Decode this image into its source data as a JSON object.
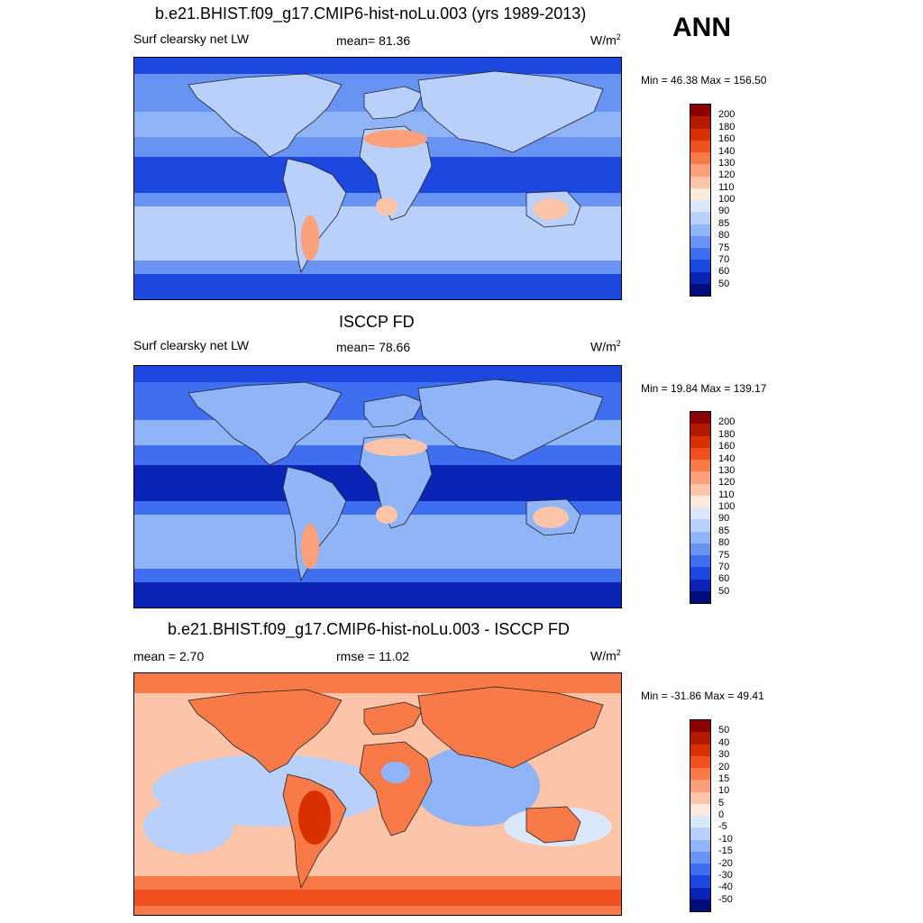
{
  "header": {
    "season": "ANN"
  },
  "units": "W/m",
  "units_sup": "2",
  "panels": [
    {
      "title": "b.e21.BHIST.f09_g17.CMIP6-hist-noLu.003 (yrs 1989-2013)",
      "left_label": "Surf clearsky net LW",
      "stat_label": "mean=  81.36",
      "min_max": "Min =  46.38 Max = 156.50",
      "map_kind": "model"
    },
    {
      "title": "ISCCP FD",
      "left_label": "Surf clearsky net LW",
      "stat_label": "mean=  78.66",
      "min_max": "Min =  19.84 Max = 139.17",
      "map_kind": "obs"
    },
    {
      "title": "b.e21.BHIST.f09_g17.CMIP6-hist-noLu.003 - ISCCP FD",
      "left_label": "mean =   2.70",
      "stat_label": "rmse =  11.02",
      "min_max": "Min = -31.86 Max =  49.41",
      "map_kind": "diff"
    }
  ],
  "colorbars": {
    "abs": {
      "labels": [
        "200",
        "180",
        "160",
        "140",
        "130",
        "120",
        "110",
        "100",
        "90",
        "85",
        "80",
        "75",
        "70",
        "60",
        "50"
      ],
      "colors": [
        "#8b0000",
        "#b31b00",
        "#d93000",
        "#f05020",
        "#f87a48",
        "#fba07a",
        "#fcc4a8",
        "#fde8dc",
        "#dbe8fb",
        "#b9d1fa",
        "#8fb4f7",
        "#6893f3",
        "#3f6ef0",
        "#1d48e0",
        "#0a24b5",
        "#000d7a"
      ]
    },
    "diff": {
      "labels": [
        "50",
        "40",
        "30",
        "20",
        "15",
        "10",
        "5",
        "0",
        "-5",
        "-10",
        "-15",
        "-20",
        "-30",
        "-40",
        "-50"
      ],
      "colors": [
        "#8b0000",
        "#b31b00",
        "#d93000",
        "#f05020",
        "#f87a48",
        "#fba07a",
        "#fcc4a8",
        "#fde8dc",
        "#dbe8fb",
        "#b9d1fa",
        "#8fb4f7",
        "#6893f3",
        "#3f6ef0",
        "#1d48e0",
        "#0a24b5",
        "#000d7a"
      ]
    }
  }
}
